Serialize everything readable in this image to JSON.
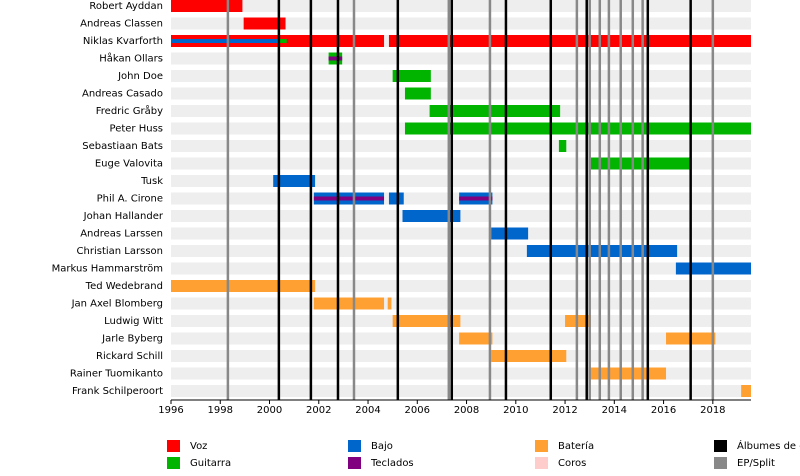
{
  "chart_data": {
    "type": "timeline",
    "xlim": [
      1996,
      2019.55
    ],
    "xticks": [
      1996,
      1998,
      2000,
      2002,
      2004,
      2006,
      2008,
      2010,
      2012,
      2014,
      2016,
      2018
    ],
    "roles": [
      {
        "name": "Voz",
        "color": "#ff0000"
      },
      {
        "name": "Guitarra",
        "color": "#00b400"
      },
      {
        "name": "Bajo",
        "color": "#0066cc"
      },
      {
        "name": "Teclados",
        "color": "#800080"
      },
      {
        "name": "Batería",
        "color": "#ffa033"
      },
      {
        "name": "Coros",
        "color": "#ffcccc"
      }
    ],
    "events": [
      {
        "name": "Álbumes de e",
        "color": "#000000",
        "dates": [
          2000.38,
          2001.68,
          2002.78,
          2005.21,
          2007.4,
          2009.6,
          2011.42,
          2012.88,
          2015.36,
          2017.1
        ]
      },
      {
        "name": "EP/Split",
        "color": "#888888",
        "dates": [
          1998.31,
          2003.43,
          2007.28,
          2008.95,
          2012.48,
          2013.0,
          2013.41,
          2013.78,
          2014.26,
          2014.75,
          2015.15,
          2018.0
        ]
      }
    ],
    "members": [
      {
        "name": "Robert Ayddan",
        "periods": [
          {
            "role": 0,
            "start": 1996.0,
            "end": 1998.9
          }
        ]
      },
      {
        "name": "Andreas Classen",
        "periods": [
          {
            "role": 0,
            "start": 1998.95,
            "end": 2000.65
          }
        ]
      },
      {
        "name": "Niklas Kvarforth",
        "periods": [
          {
            "role": 0,
            "start": 1996.0,
            "end": 2004.65
          },
          {
            "role": 0,
            "start": 2004.85,
            "end": 2019.55
          },
          {
            "role": 1,
            "start": 1996.0,
            "end": 2000.7,
            "secondary": true
          },
          {
            "role": 2,
            "start": 1996.0,
            "end": 2000.3,
            "secondary": true
          }
        ]
      },
      {
        "name": "Håkan Ollars",
        "periods": [
          {
            "role": 1,
            "start": 2002.4,
            "end": 2002.95
          },
          {
            "role": 3,
            "start": 2002.4,
            "end": 2002.95,
            "secondary": true
          }
        ]
      },
      {
        "name": "John Doe",
        "periods": [
          {
            "role": 1,
            "start": 2005.0,
            "end": 2006.55
          }
        ]
      },
      {
        "name": "Andreas Casado",
        "periods": [
          {
            "role": 1,
            "start": 2005.5,
            "end": 2006.55
          }
        ]
      },
      {
        "name": "Fredric Gråby",
        "periods": [
          {
            "role": 1,
            "start": 2006.5,
            "end": 2011.8
          }
        ]
      },
      {
        "name": "Peter Huss",
        "periods": [
          {
            "role": 1,
            "start": 2005.5,
            "end": 2019.55
          }
        ]
      },
      {
        "name": "Sebastiaan Bats",
        "periods": [
          {
            "role": 1,
            "start": 2011.75,
            "end": 2012.05
          }
        ]
      },
      {
        "name": "Euge Valovita",
        "periods": [
          {
            "role": 1,
            "start": 2013.05,
            "end": 2017.1
          }
        ]
      },
      {
        "name": "Tusk",
        "periods": [
          {
            "role": 2,
            "start": 2000.15,
            "end": 2001.85
          }
        ]
      },
      {
        "name": "Phil A. Cirone",
        "periods": [
          {
            "role": 2,
            "start": 2001.8,
            "end": 2004.65
          },
          {
            "role": 2,
            "start": 2004.85,
            "end": 2005.45
          },
          {
            "role": 2,
            "start": 2007.7,
            "end": 2009.05
          },
          {
            "role": 3,
            "start": 2001.8,
            "end": 2004.65,
            "secondary": true
          },
          {
            "role": 3,
            "start": 2007.7,
            "end": 2009.05,
            "secondary": true
          }
        ]
      },
      {
        "name": "Johan Hallander",
        "periods": [
          {
            "role": 2,
            "start": 2005.4,
            "end": 2007.75
          }
        ]
      },
      {
        "name": "Andreas Larssen",
        "periods": [
          {
            "role": 2,
            "start": 2009.0,
            "end": 2010.5
          }
        ]
      },
      {
        "name": "Christian Larsson",
        "periods": [
          {
            "role": 2,
            "start": 2010.45,
            "end": 2016.55
          }
        ]
      },
      {
        "name": "Markus Hammarström",
        "periods": [
          {
            "role": 2,
            "start": 2016.5,
            "end": 2019.55
          }
        ]
      },
      {
        "name": "Ted Wedebrand",
        "periods": [
          {
            "role": 4,
            "start": 1996.0,
            "end": 2001.85
          }
        ]
      },
      {
        "name": "Jan Axel Blomberg",
        "periods": [
          {
            "role": 4,
            "start": 2001.8,
            "end": 2004.65
          },
          {
            "role": 4,
            "start": 2004.8,
            "end": 2004.95
          }
        ]
      },
      {
        "name": "Ludwig Witt",
        "periods": [
          {
            "role": 4,
            "start": 2005.0,
            "end": 2007.75
          },
          {
            "role": 4,
            "start": 2012.0,
            "end": 2013.05
          }
        ]
      },
      {
        "name": "Jarle Byberg",
        "periods": [
          {
            "role": 4,
            "start": 2007.7,
            "end": 2009.05
          },
          {
            "role": 4,
            "start": 2016.1,
            "end": 2018.1
          }
        ]
      },
      {
        "name": "Rickard Schill",
        "periods": [
          {
            "role": 4,
            "start": 2009.0,
            "end": 2012.05
          }
        ]
      },
      {
        "name": "Rainer Tuomikanto",
        "periods": [
          {
            "role": 4,
            "start": 2012.95,
            "end": 2016.1
          }
        ]
      },
      {
        "name": "Frank Schilperoort",
        "periods": [
          {
            "role": 4,
            "start": 2019.15,
            "end": 2019.55
          }
        ]
      }
    ]
  }
}
